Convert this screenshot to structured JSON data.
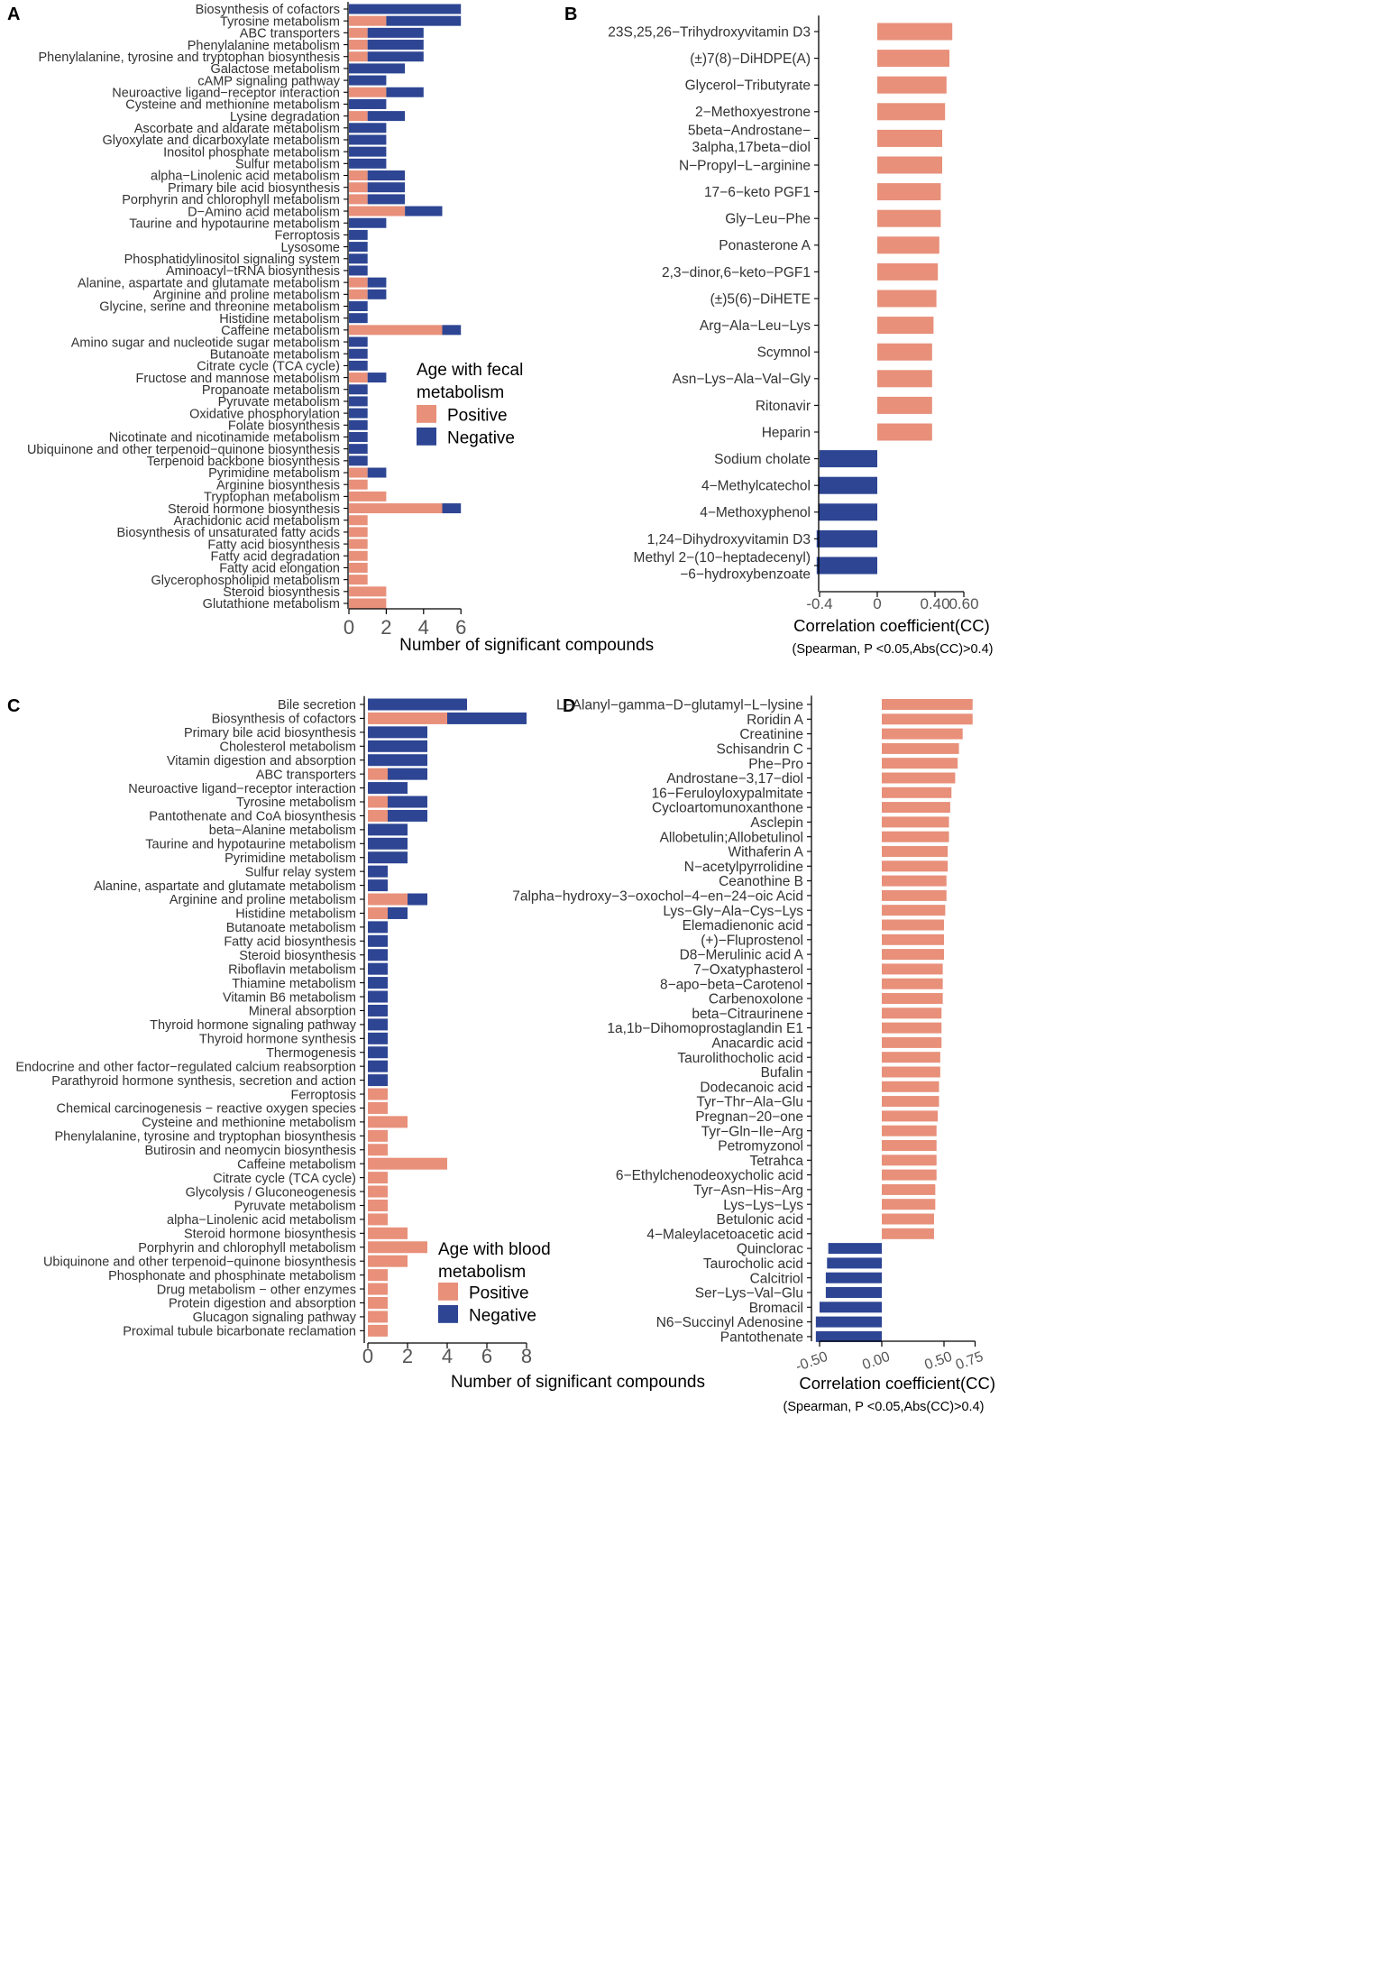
{
  "colors": {
    "positive": "#E8907A",
    "negative": "#2D4593",
    "axis": "#000000",
    "label": "#333333",
    "tick_text": "#555555"
  },
  "panels": [
    {
      "letter": "A",
      "chart_data": {
        "type": "bar",
        "orientation": "horizontal",
        "stacked": true,
        "title": "",
        "xlabel": "Number of significant compounds",
        "ylabel": "",
        "xlim": [
          0,
          6
        ],
        "x_ticks": [
          0,
          2,
          4,
          6
        ],
        "x_tick_labels": [
          "0",
          "2",
          "4",
          "6"
        ],
        "legend": {
          "title_lines": [
            "Age with fecal",
            "metabolism"
          ],
          "entries": [
            "Positive",
            "Negative"
          ],
          "placement": "right-middle"
        },
        "categories": [
          "Biosynthesis of cofactors",
          "Tyrosine metabolism",
          "ABC transporters",
          "Phenylalanine metabolism",
          "Phenylalanine, tyrosine and tryptophan biosynthesis",
          "Galactose metabolism",
          "cAMP signaling pathway",
          "Neuroactive ligand−receptor interaction",
          "Cysteine and methionine metabolism",
          "Lysine degradation",
          "Ascorbate and aldarate metabolism",
          "Glyoxylate and dicarboxylate metabolism",
          "Inositol phosphate metabolism",
          "Sulfur metabolism",
          "alpha−Linolenic acid metabolism",
          "Primary bile acid biosynthesis",
          "Porphyrin and chlorophyll metabolism",
          "D−Amino acid metabolism",
          "Taurine and hypotaurine metabolism",
          "Ferroptosis",
          "Lysosome",
          "Phosphatidylinositol signaling system",
          "Aminoacyl−tRNA biosynthesis",
          "Alanine, aspartate and glutamate metabolism",
          "Arginine and proline metabolism",
          "Glycine, serine and threonine metabolism",
          "Histidine metabolism",
          "Caffeine metabolism",
          "Amino sugar and nucleotide sugar metabolism",
          "Butanoate metabolism",
          "Citrate cycle (TCA cycle)",
          "Fructose and mannose metabolism",
          "Propanoate metabolism",
          "Pyruvate metabolism",
          "Oxidative phosphorylation",
          "Folate biosynthesis",
          "Nicotinate and nicotinamide metabolism",
          "Ubiquinone and other terpenoid−quinone biosynthesis",
          "Terpenoid backbone biosynthesis",
          "Pyrimidine metabolism",
          "Arginine biosynthesis",
          "Tryptophan metabolism",
          "Steroid hormone biosynthesis",
          "Arachidonic acid metabolism",
          "Biosynthesis of unsaturated fatty acids",
          "Fatty acid biosynthesis",
          "Fatty acid degradation",
          "Fatty acid elongation",
          "Glycerophospholipid metabolism",
          "Steroid biosynthesis",
          "Glutathione metabolism"
        ],
        "series": [
          {
            "name": "Positive",
            "values": [
              0,
              2,
              1,
              1,
              1,
              0,
              0,
              2,
              0,
              1,
              0,
              0,
              0,
              0,
              1,
              1,
              1,
              3,
              0,
              0,
              0,
              0,
              0,
              1,
              1,
              0,
              0,
              5,
              0,
              0,
              0,
              1,
              0,
              0,
              0,
              0,
              0,
              0,
              0,
              1,
              1,
              2,
              5,
              1,
              1,
              1,
              1,
              1,
              1,
              2,
              2
            ]
          },
          {
            "name": "Negative",
            "values": [
              6,
              4,
              3,
              3,
              3,
              3,
              2,
              2,
              2,
              2,
              2,
              2,
              2,
              2,
              2,
              2,
              2,
              2,
              2,
              1,
              1,
              1,
              1,
              1,
              1,
              1,
              1,
              1,
              1,
              1,
              1,
              1,
              1,
              1,
              1,
              1,
              1,
              1,
              1,
              1,
              0,
              0,
              1,
              0,
              0,
              0,
              0,
              0,
              0,
              0,
              0
            ]
          }
        ]
      }
    },
    {
      "letter": "B",
      "footnote": "(Spearman, P <0.05,Abs(CC)>0.4)",
      "chart_data": {
        "type": "bar",
        "orientation": "horizontal",
        "title": "",
        "xlabel": "Correlation coefficient(CC)",
        "ylabel": "",
        "xlim": [
          -0.47,
          0.66
        ],
        "x_ticks": [
          -0.4,
          0,
          0.4,
          0.6
        ],
        "x_tick_labels": [
          "-0.4",
          "0",
          "0.40",
          "0.60"
        ],
        "categories": [
          [
            "23S,25,26−Trihydroxyvitamin D3"
          ],
          [
            "(±)7(8)−DiHDPE(A)"
          ],
          [
            "Glycerol−Tributyrate"
          ],
          [
            "2−Methoxyestrone"
          ],
          [
            "5beta−Androstane−",
            "3alpha,17beta−diol"
          ],
          [
            "N−Propyl−L−arginine"
          ],
          [
            "17−6−keto PGF1"
          ],
          [
            "Gly−Leu−Phe"
          ],
          [
            "Ponasterone A"
          ],
          [
            "2,3−dinor,6−keto−PGF1"
          ],
          [
            "(±)5(6)−DiHETE"
          ],
          [
            "Arg−Ala−Leu−Lys"
          ],
          [
            "Scymnol"
          ],
          [
            "Asn−Lys−Ala−Val−Gly"
          ],
          [
            "Ritonavir"
          ],
          [
            "Heparin"
          ],
          [
            "Sodium cholate"
          ],
          [
            "4−Methylcatechol"
          ],
          [
            "4−Methoxyphenol"
          ],
          [
            "1,24−Dihydroxyvitamin D3"
          ],
          [
            "Methyl 2−(10−heptadecenyl)",
            "−6−hydroxybenzoate"
          ]
        ],
        "values": [
          0.52,
          0.5,
          0.48,
          0.47,
          0.45,
          0.45,
          0.44,
          0.44,
          0.43,
          0.42,
          0.41,
          0.39,
          0.38,
          0.38,
          0.38,
          0.38,
          -0.4,
          -0.41,
          -0.41,
          -0.42,
          -0.42
        ]
      }
    },
    {
      "letter": "C",
      "chart_data": {
        "type": "bar",
        "orientation": "horizontal",
        "stacked": true,
        "title": "",
        "xlabel": "Number of significant compounds",
        "ylabel": "",
        "xlim": [
          0,
          8
        ],
        "x_ticks": [
          0,
          2,
          4,
          6,
          8
        ],
        "x_tick_labels": [
          "0",
          "2",
          "4",
          "6",
          "8"
        ],
        "legend": {
          "title_lines": [
            "Age with blood",
            "metabolism"
          ],
          "entries": [
            "Positive",
            "Negative"
          ],
          "placement": "bottom-right"
        },
        "categories": [
          "Bile secretion",
          "Biosynthesis of cofactors",
          "Primary bile acid biosynthesis",
          "Cholesterol metabolism",
          "Vitamin digestion and absorption",
          "ABC transporters",
          "Neuroactive ligand−receptor interaction",
          "Tyrosine metabolism",
          "Pantothenate and CoA biosynthesis",
          "beta−Alanine metabolism",
          "Taurine and hypotaurine metabolism",
          "Pyrimidine metabolism",
          "Sulfur relay system",
          "Alanine, aspartate and glutamate metabolism",
          "Arginine and proline metabolism",
          "Histidine metabolism",
          "Butanoate metabolism",
          "Fatty acid biosynthesis",
          "Steroid biosynthesis",
          "Riboflavin metabolism",
          "Thiamine metabolism",
          "Vitamin B6 metabolism",
          "Mineral absorption",
          "Thyroid hormone signaling pathway",
          "Thyroid hormone synthesis",
          "Thermogenesis",
          "Endocrine and other factor−regulated calcium reabsorption",
          "Parathyroid hormone synthesis, secretion and action",
          "Ferroptosis",
          "Chemical carcinogenesis − reactive oxygen species",
          "Cysteine and methionine metabolism",
          "Phenylalanine, tyrosine and tryptophan biosynthesis",
          "Butirosin and neomycin biosynthesis",
          "Caffeine metabolism",
          "Citrate cycle (TCA cycle)",
          "Glycolysis / Gluconeogenesis",
          "Pyruvate metabolism",
          "alpha−Linolenic acid metabolism",
          "Steroid hormone biosynthesis",
          "Porphyrin and chlorophyll metabolism",
          "Ubiquinone and other terpenoid−quinone biosynthesis",
          "Phosphonate and phosphinate metabolism",
          "Drug metabolism − other enzymes",
          "Protein digestion and absorption",
          "Glucagon signaling pathway",
          "Proximal tubule bicarbonate reclamation"
        ],
        "series": [
          {
            "name": "Positive",
            "values": [
              0,
              4,
              0,
              0,
              0,
              1,
              0,
              1,
              1,
              0,
              0,
              0,
              0,
              0,
              2,
              1,
              0,
              0,
              0,
              0,
              0,
              0,
              0,
              0,
              0,
              0,
              0,
              0,
              1,
              1,
              2,
              1,
              1,
              4,
              1,
              1,
              1,
              1,
              2,
              3,
              2,
              1,
              1,
              1,
              1,
              1
            ]
          },
          {
            "name": "Negative",
            "values": [
              5,
              4,
              3,
              3,
              3,
              2,
              2,
              2,
              2,
              2,
              2,
              2,
              1,
              1,
              1,
              1,
              1,
              1,
              1,
              1,
              1,
              1,
              1,
              1,
              1,
              1,
              1,
              1,
              0,
              0,
              0,
              0,
              0,
              0,
              0,
              0,
              0,
              0,
              0,
              0,
              0,
              0,
              0,
              0,
              0,
              0
            ]
          }
        ]
      }
    },
    {
      "letter": "D",
      "footnote": "(Spearman, P <0.05,Abs(CC)>0.4)",
      "chart_data": {
        "type": "bar",
        "orientation": "horizontal",
        "title": "",
        "xlabel": "Correlation coefficient(CC)",
        "ylabel": "",
        "xlim": [
          -0.57,
          0.8
        ],
        "x_ticks": [
          -0.5,
          0,
          0.5,
          0.75
        ],
        "x_tick_labels": [
          "-0.50",
          "0.00",
          "0.50",
          "0.75"
        ],
        "categories": [
          "L−Alanyl−gamma−D−glutamyl−L−lysine",
          "Roridin A",
          "Creatinine",
          "Schisandrin C",
          "Phe−Pro",
          "Androstane−3,17−diol",
          "16−Feruloyloxypalmitate",
          "Cycloartomunoxanthone",
          "Asclepin",
          "Allobetulin;Allobetulinol",
          "Withaferin A",
          "N−acetylpyrrolidine",
          "Ceanothine B",
          "7alpha−hydroxy−3−oxochol−4−en−24−oic Acid",
          "Lys−Gly−Ala−Cys−Lys",
          "Elemadienonic acid",
          "(+)−Fluprostenol",
          "D8−Merulinic acid A",
          "7−Oxatyphasterol",
          "8−apo−beta−Carotenol",
          "Carbenoxolone",
          "beta−Citraurinene",
          "1a,1b−Dihomoprostaglandin E1",
          "Anacardic acid",
          "Taurolithocholic acid",
          "Bufalin",
          "Dodecanoic acid",
          "Tyr−Thr−Ala−Glu",
          "Pregnan−20−one",
          "Tyr−Gln−Ile−Arg",
          "Petromyzonol",
          "Tetrahca",
          "6−Ethylchenodeoxycholic acid",
          "Tyr−Asn−His−Arg",
          "Lys−Lys−Lys",
          "Betulonic acid",
          "4−Maleylacetoacetic acid",
          "Quinclorac",
          "Taurocholic acid",
          "Calcitriol",
          "Ser−Lys−Val−Glu",
          "Bromacil",
          "N6−Succinyl Adenosine",
          "Pantothenate"
        ],
        "values": [
          0.73,
          0.73,
          0.65,
          0.62,
          0.61,
          0.59,
          0.56,
          0.55,
          0.54,
          0.54,
          0.53,
          0.53,
          0.52,
          0.52,
          0.51,
          0.5,
          0.5,
          0.5,
          0.49,
          0.49,
          0.49,
          0.48,
          0.48,
          0.48,
          0.47,
          0.47,
          0.46,
          0.46,
          0.45,
          0.44,
          0.44,
          0.44,
          0.44,
          0.43,
          0.43,
          0.42,
          0.42,
          -0.43,
          -0.44,
          -0.45,
          -0.45,
          -0.5,
          -0.53,
          -0.53
        ]
      }
    }
  ]
}
